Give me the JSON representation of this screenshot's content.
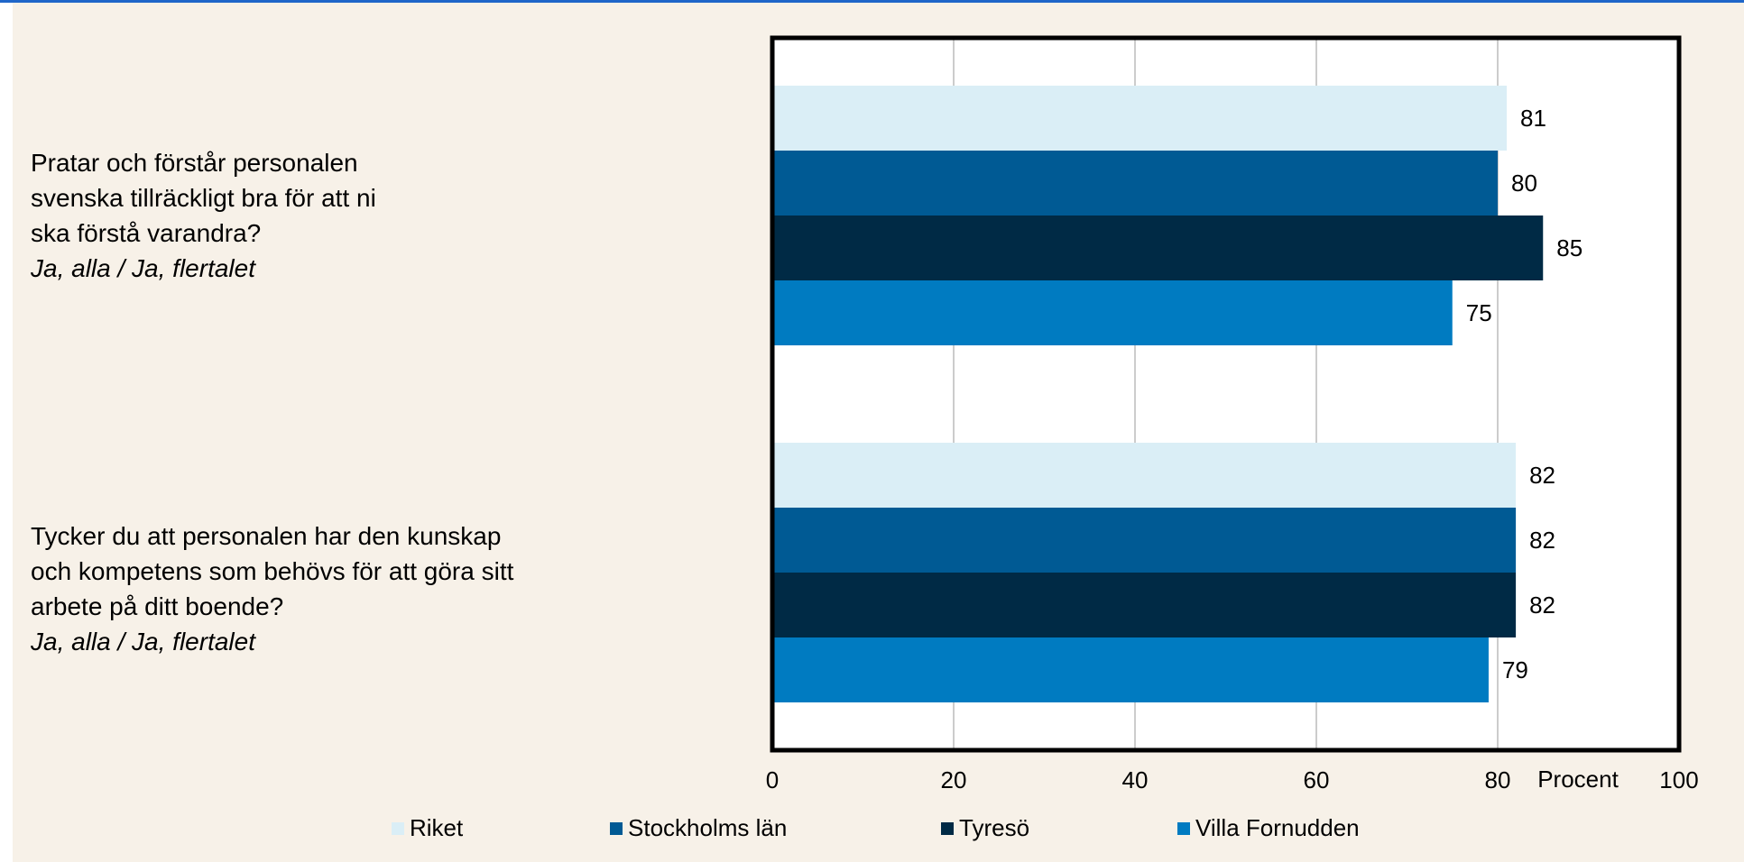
{
  "colors": {
    "panel_bg": "#f7f1e8",
    "plot_bg": "#ffffff",
    "grid": "#9a9a9a",
    "frame": "#000000",
    "accent_top": "#1f66c9"
  },
  "chart_data": {
    "type": "bar",
    "orientation": "horizontal",
    "categories": [
      {
        "question": "Pratar och förstår personalen\nsvenska tillräckligt bra för att ni\nska förstå varandra?",
        "answer": "Ja, alla / Ja, flertalet"
      },
      {
        "question": "Tycker du att personalen har den kunskap\noch kompetens som behövs för att göra sitt\narbete på ditt boende?",
        "answer": "Ja, alla / Ja, flertalet"
      }
    ],
    "series": [
      {
        "name": "Riket",
        "color": "#daeef6",
        "values": [
          81,
          82
        ]
      },
      {
        "name": "Stockholms län",
        "color": "#005a94",
        "values": [
          80,
          82
        ]
      },
      {
        "name": "Tyresö",
        "color": "#002a45",
        "values": [
          85,
          82
        ]
      },
      {
        "name": "Villa Fornudden",
        "color": "#007bc1",
        "values": [
          75,
          79
        ]
      }
    ],
    "xlim": [
      0,
      100
    ],
    "xticks": [
      "0",
      "20",
      "40",
      "60",
      "80",
      "100"
    ],
    "xunit": "Procent",
    "grid": true,
    "legend_position": "bottom"
  }
}
